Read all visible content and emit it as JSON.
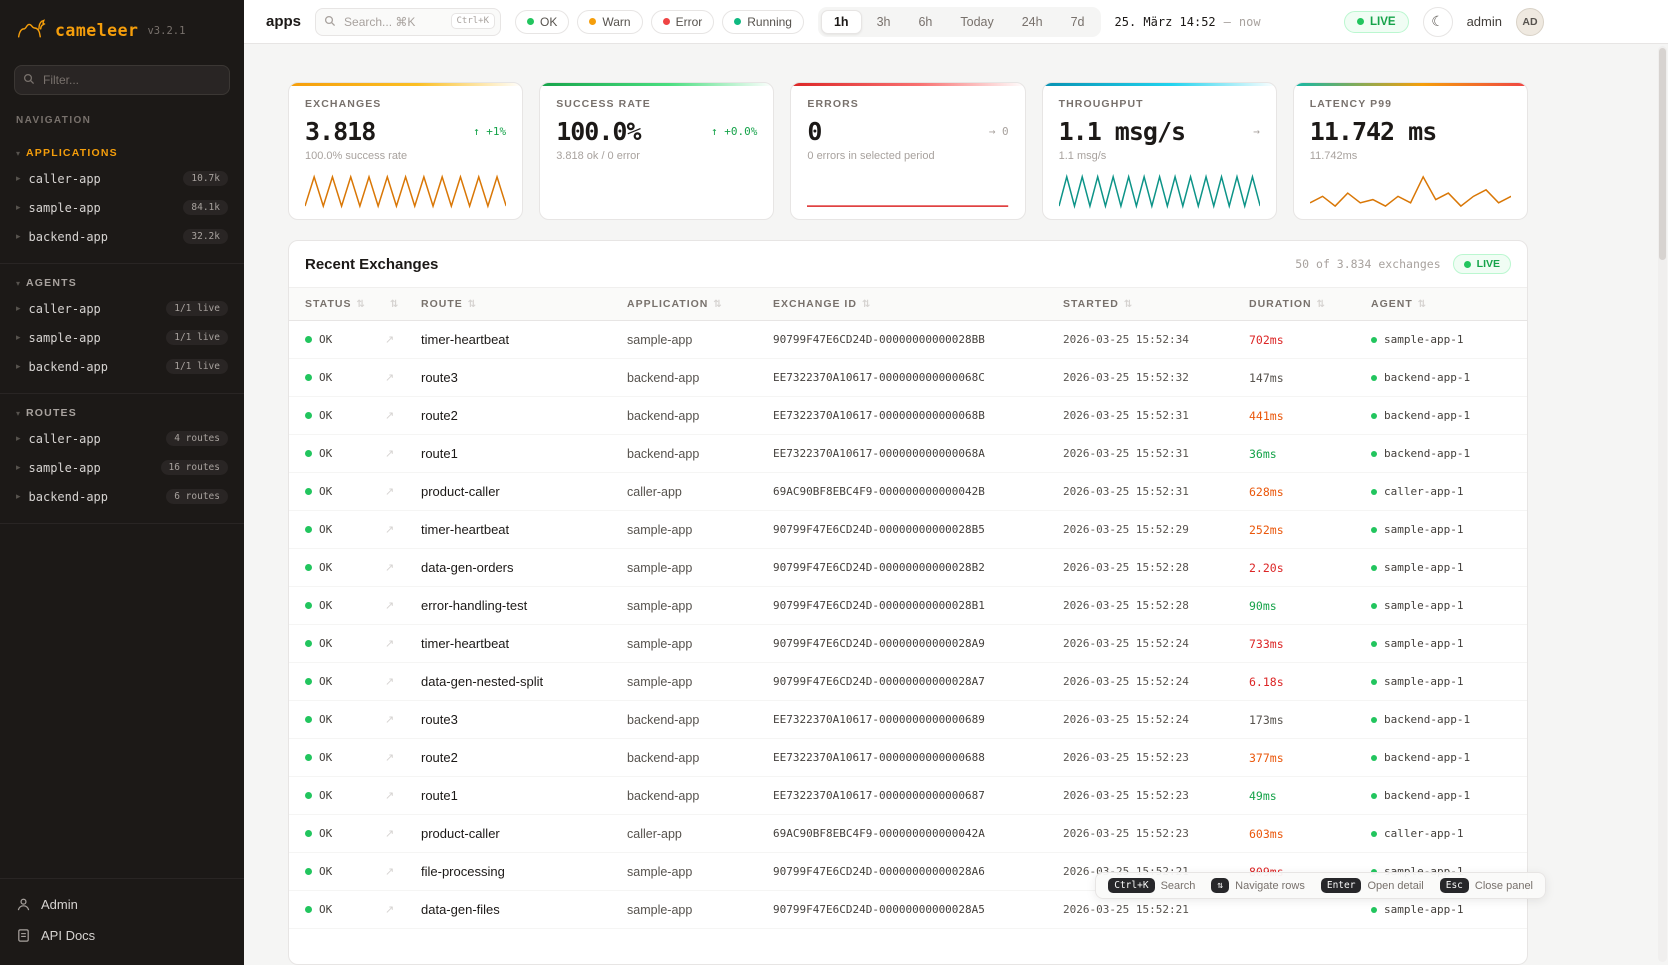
{
  "colors": {
    "amber": "#f59e0b",
    "orange": "#ea580c",
    "green": "#16a34a",
    "ok_dot": "#22c55e",
    "red": "#dc2626",
    "teal": "#0d9488",
    "gray": "#78716c"
  },
  "icons": {
    "logo": "camel-icon",
    "filter": "magnifier-icon",
    "search": "magnifier-icon",
    "theme": "moon-icon",
    "row_action": "open-detail-arrow-icon",
    "sort": "sort-arrows-icon",
    "admin": "person-icon",
    "api_docs": "document-icon"
  },
  "sidebar": {
    "logo": {
      "name": "cameleer",
      "version": "v3.2.1"
    },
    "filter": {
      "placeholder": "Filter..."
    },
    "nav_caption": "NAVIGATION",
    "sections": [
      {
        "title": "APPLICATIONS",
        "accent": "amber",
        "items": [
          {
            "label": "caller-app",
            "badge": "10.7k"
          },
          {
            "label": "sample-app",
            "badge": "84.1k"
          },
          {
            "label": "backend-app",
            "badge": "32.2k"
          }
        ]
      },
      {
        "title": "AGENTS",
        "accent": "gray",
        "items": [
          {
            "label": "caller-app",
            "badge": "1/1 live"
          },
          {
            "label": "sample-app",
            "badge": "1/1 live"
          },
          {
            "label": "backend-app",
            "badge": "1/1 live"
          }
        ]
      },
      {
        "title": "ROUTES",
        "accent": "gray",
        "items": [
          {
            "label": "caller-app",
            "badge": "4 routes"
          },
          {
            "label": "sample-app",
            "badge": "16 routes"
          },
          {
            "label": "backend-app",
            "badge": "6 routes"
          }
        ]
      }
    ],
    "footer": [
      {
        "label": "Admin"
      },
      {
        "label": "API Docs"
      }
    ]
  },
  "topbar": {
    "context": "apps",
    "search": {
      "placeholder": "Search... ⌘K",
      "hint": "Ctrl+K"
    },
    "chips": [
      {
        "label": "OK",
        "dot": "#22c55e"
      },
      {
        "label": "Warn",
        "dot": "#f59e0b"
      },
      {
        "label": "Error",
        "dot": "#ef4444"
      },
      {
        "label": "Running",
        "dot": "#10b981"
      }
    ],
    "ranges": [
      "1h",
      "3h",
      "6h",
      "Today",
      "24h",
      "7d"
    ],
    "active_range": "1h",
    "datetime": "25. März 14:52",
    "datetime_sep": "—",
    "datetime_end": "now",
    "live": "LIVE",
    "user": "admin",
    "avatar": "AD"
  },
  "cards": [
    {
      "label": "EXCHANGES",
      "value": "3.818",
      "delta": "↑ +1%",
      "delta_color": "#16a34a",
      "sub": "100.0% success rate",
      "accent": "linear-gradient(90deg,#f59e0b,#fbbf24 55%,rgba(251,191,36,0))",
      "spark_color": "#d97706",
      "spark": [
        2,
        16,
        2,
        16,
        2,
        16,
        2,
        16,
        2,
        16,
        2,
        16,
        2,
        16,
        2,
        16,
        2,
        16,
        2,
        16,
        2,
        16,
        2
      ]
    },
    {
      "label": "SUCCESS RATE",
      "value": "100.0%",
      "delta": "↑ +0.0%",
      "delta_color": "#16a34a",
      "sub": "3.818 ok / 0 error",
      "accent": "linear-gradient(90deg,#16a34a,#4ade80 55%,rgba(74,222,128,0))",
      "spark_color": "",
      "spark": []
    },
    {
      "label": "ERRORS",
      "value": "0",
      "delta": "→ 0",
      "delta_color": "#a8a29e",
      "sub": "0 errors in selected period",
      "accent": "linear-gradient(90deg,#dc2626,#f87171 55%,rgba(248,113,113,0))",
      "spark_color": "#dc2626",
      "spark": [
        0,
        0,
        0,
        0,
        0,
        0,
        0,
        0
      ]
    },
    {
      "label": "THROUGHPUT",
      "value": "1.1 msg/s",
      "delta": "→",
      "delta_color": "#a8a29e",
      "sub": "1.1 msg/s",
      "accent": "linear-gradient(90deg,#0891b2,#22d3ee 55%,rgba(34,211,238,0))",
      "spark_color": "#0d9488",
      "spark": [
        2,
        16,
        2,
        16,
        2,
        16,
        2,
        16,
        2,
        16,
        2,
        16,
        2,
        16,
        2,
        16,
        2,
        16,
        2,
        16,
        2,
        16,
        2,
        16,
        2,
        16,
        2
      ]
    },
    {
      "label": "LATENCY P99",
      "value": "11.742 ms",
      "delta": "",
      "delta_color": "#a8a29e",
      "sub": "11.742ms",
      "accent": "linear-gradient(90deg,#14b8a6,#f59e0b 55%,#ef4444)",
      "spark_color": "#d97706",
      "spark": [
        6,
        8,
        5,
        9,
        6,
        7,
        5,
        8,
        6,
        14,
        7,
        9,
        5,
        8,
        10,
        6,
        8
      ]
    }
  ],
  "table": {
    "title": "Recent Exchanges",
    "meta": "50 of 3.834 exchanges",
    "live": "LIVE",
    "columns": [
      {
        "label": "STATUS"
      },
      {
        "label": ""
      },
      {
        "label": "ROUTE"
      },
      {
        "label": "APPLICATION"
      },
      {
        "label": "EXCHANGE ID"
      },
      {
        "label": "STARTED"
      },
      {
        "label": "DURATION"
      },
      {
        "label": "AGENT"
      }
    ],
    "rows": [
      {
        "status": "OK",
        "route": "timer-heartbeat",
        "app": "sample-app",
        "id": "90799F47E6CD24D-00000000000028BB",
        "started": "2026-03-25 15:52:34",
        "duration": "702ms",
        "duration_color": "#dc2626",
        "agent": "sample-app-1"
      },
      {
        "status": "OK",
        "route": "route3",
        "app": "backend-app",
        "id": "EE7322370A10617-000000000000068C",
        "started": "2026-03-25 15:52:32",
        "duration": "147ms",
        "duration_color": "#57534e",
        "agent": "backend-app-1"
      },
      {
        "status": "OK",
        "route": "route2",
        "app": "backend-app",
        "id": "EE7322370A10617-000000000000068B",
        "started": "2026-03-25 15:52:31",
        "duration": "441ms",
        "duration_color": "#ea580c",
        "agent": "backend-app-1"
      },
      {
        "status": "OK",
        "route": "route1",
        "app": "backend-app",
        "id": "EE7322370A10617-000000000000068A",
        "started": "2026-03-25 15:52:31",
        "duration": "36ms",
        "duration_color": "#16a34a",
        "agent": "backend-app-1"
      },
      {
        "status": "OK",
        "route": "product-caller",
        "app": "caller-app",
        "id": "69AC90BF8EBC4F9-000000000000042B",
        "started": "2026-03-25 15:52:31",
        "duration": "628ms",
        "duration_color": "#ea580c",
        "agent": "caller-app-1"
      },
      {
        "status": "OK",
        "route": "timer-heartbeat",
        "app": "sample-app",
        "id": "90799F47E6CD24D-00000000000028B5",
        "started": "2026-03-25 15:52:29",
        "duration": "252ms",
        "duration_color": "#ea580c",
        "agent": "sample-app-1"
      },
      {
        "status": "OK",
        "route": "data-gen-orders",
        "app": "sample-app",
        "id": "90799F47E6CD24D-00000000000028B2",
        "started": "2026-03-25 15:52:28",
        "duration": "2.20s",
        "duration_color": "#dc2626",
        "agent": "sample-app-1"
      },
      {
        "status": "OK",
        "route": "error-handling-test",
        "app": "sample-app",
        "id": "90799F47E6CD24D-00000000000028B1",
        "started": "2026-03-25 15:52:28",
        "duration": "90ms",
        "duration_color": "#16a34a",
        "agent": "sample-app-1"
      },
      {
        "status": "OK",
        "route": "timer-heartbeat",
        "app": "sample-app",
        "id": "90799F47E6CD24D-00000000000028A9",
        "started": "2026-03-25 15:52:24",
        "duration": "733ms",
        "duration_color": "#dc2626",
        "agent": "sample-app-1"
      },
      {
        "status": "OK",
        "route": "data-gen-nested-split",
        "app": "sample-app",
        "id": "90799F47E6CD24D-00000000000028A7",
        "started": "2026-03-25 15:52:24",
        "duration": "6.18s",
        "duration_color": "#dc2626",
        "agent": "sample-app-1"
      },
      {
        "status": "OK",
        "route": "route3",
        "app": "backend-app",
        "id": "EE7322370A10617-0000000000000689",
        "started": "2026-03-25 15:52:24",
        "duration": "173ms",
        "duration_color": "#57534e",
        "agent": "backend-app-1"
      },
      {
        "status": "OK",
        "route": "route2",
        "app": "backend-app",
        "id": "EE7322370A10617-0000000000000688",
        "started": "2026-03-25 15:52:23",
        "duration": "377ms",
        "duration_color": "#ea580c",
        "agent": "backend-app-1"
      },
      {
        "status": "OK",
        "route": "route1",
        "app": "backend-app",
        "id": "EE7322370A10617-0000000000000687",
        "started": "2026-03-25 15:52:23",
        "duration": "49ms",
        "duration_color": "#16a34a",
        "agent": "backend-app-1"
      },
      {
        "status": "OK",
        "route": "product-caller",
        "app": "caller-app",
        "id": "69AC90BF8EBC4F9-000000000000042A",
        "started": "2026-03-25 15:52:23",
        "duration": "603ms",
        "duration_color": "#ea580c",
        "agent": "caller-app-1"
      },
      {
        "status": "OK",
        "route": "file-processing",
        "app": "sample-app",
        "id": "90799F47E6CD24D-00000000000028A6",
        "started": "2026-03-25 15:52:21",
        "duration": "809ms",
        "duration_color": "#dc2626",
        "agent": "sample-app-1"
      },
      {
        "status": "OK",
        "route": "data-gen-files",
        "app": "sample-app",
        "id": "90799F47E6CD24D-00000000000028A5",
        "started": "2026-03-25 15:52:21",
        "duration": "",
        "duration_color": "#57534e",
        "agent": "sample-app-1"
      }
    ]
  },
  "hints": [
    {
      "key": "Ctrl+K",
      "label": "Search"
    },
    {
      "key": "⇅",
      "label": "Navigate rows"
    },
    {
      "key": "Enter",
      "label": "Open detail"
    },
    {
      "key": "Esc",
      "label": "Close panel"
    }
  ]
}
